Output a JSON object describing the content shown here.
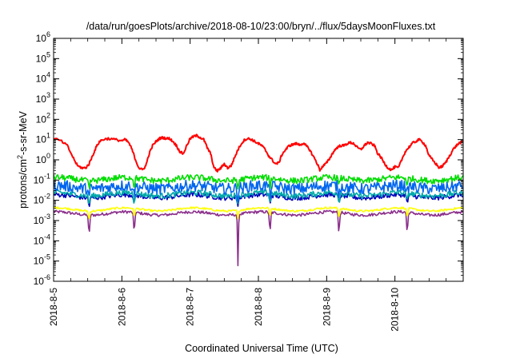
{
  "chart_data": {
    "type": "line",
    "title": "/data/run/goesPlots/archive/2018-08-10/23:00/bryn/../flux/5daysMoonFluxes.txt",
    "xlabel": "Coordinated Universal Time (UTC)",
    "ylabel": {
      "prefix": "protons/cm",
      "superscript": "2",
      "suffix": "-s-sr-MeV"
    },
    "x_range_days": [
      0,
      6.0
    ],
    "x_ticks": [
      {
        "day": 0,
        "label": "2018-8-5"
      },
      {
        "day": 1,
        "label": "2018-8-6"
      },
      {
        "day": 2,
        "label": "2018-8-7"
      },
      {
        "day": 3,
        "label": "2018-8-8"
      },
      {
        "day": 4,
        "label": "2018-8-9"
      },
      {
        "day": 5,
        "label": "2018-8-10"
      }
    ],
    "y_scale": "log",
    "y_range_exp": [
      -6,
      6
    ],
    "y_ticks": [
      {
        "exp": -6,
        "base": "10",
        "power": "-6"
      },
      {
        "exp": -5,
        "base": "10",
        "power": "-5"
      },
      {
        "exp": -4,
        "base": "10",
        "power": "-4"
      },
      {
        "exp": -3,
        "base": "10",
        "power": "-3"
      },
      {
        "exp": -2,
        "base": "10",
        "power": "-2"
      },
      {
        "exp": -1,
        "base": "10",
        "power": "-1"
      },
      {
        "exp": 0,
        "base": "10",
        "power": "0"
      },
      {
        "exp": 1,
        "base": "10",
        "power": "1"
      },
      {
        "exp": 2,
        "base": "10",
        "power": "2"
      },
      {
        "exp": 3,
        "base": "10",
        "power": "3"
      },
      {
        "exp": 4,
        "base": "10",
        "power": "4"
      },
      {
        "exp": 5,
        "base": "10",
        "power": "5"
      },
      {
        "exp": 6,
        "base": "10",
        "power": "6"
      }
    ],
    "grid": false,
    "legend": "none",
    "series": [
      {
        "color": "#ff0000",
        "x": [
          0.0,
          0.1,
          0.2,
          0.28,
          0.35,
          0.42,
          0.47,
          0.52,
          0.57,
          0.62,
          0.67,
          0.72,
          0.8,
          0.9,
          1.0,
          1.05,
          1.1,
          1.15,
          1.2,
          1.25,
          1.3,
          1.35,
          1.4,
          1.45,
          1.5,
          1.55,
          1.6,
          1.65,
          1.7,
          1.75,
          1.8,
          1.85,
          1.9,
          1.95,
          2.0,
          2.05,
          2.1,
          2.15,
          2.2,
          2.25,
          2.3,
          2.35,
          2.4,
          2.45,
          2.5,
          2.55,
          2.6,
          2.65,
          2.7,
          2.75,
          2.8,
          2.85,
          2.9,
          2.95,
          3.0,
          3.05,
          3.1,
          3.15,
          3.2,
          3.25,
          3.3,
          3.35,
          3.4,
          3.45,
          3.5,
          3.55,
          3.6,
          3.65,
          3.7,
          3.75,
          3.8,
          3.85,
          3.9,
          3.95,
          4.0,
          4.05,
          4.1,
          4.15,
          4.2,
          4.25,
          4.3,
          4.35,
          4.4,
          4.45,
          4.5,
          4.55,
          4.6,
          4.65,
          4.7,
          4.75,
          4.8,
          4.85,
          4.9,
          4.95,
          5.0,
          5.05,
          5.1,
          5.15,
          5.2,
          5.25,
          5.3,
          5.35,
          5.4,
          5.45,
          5.5,
          5.55,
          5.6,
          5.65,
          5.7,
          5.75,
          5.8,
          5.85,
          5.9,
          5.95,
          6.0
        ],
        "y_exp": [
          1.05,
          0.95,
          0.7,
          0.15,
          -0.3,
          -0.4,
          -0.4,
          -0.2,
          0.2,
          0.6,
          0.9,
          1.0,
          1.05,
          1.0,
          0.95,
          1.0,
          0.85,
          0.5,
          0.0,
          -0.4,
          -0.5,
          -0.3,
          0.3,
          0.7,
          0.9,
          1.05,
          1.1,
          1.05,
          1.05,
          0.9,
          0.7,
          0.4,
          0.3,
          0.7,
          1.05,
          1.15,
          1.2,
          1.1,
          1.0,
          0.6,
          0.3,
          -0.4,
          -0.55,
          -0.4,
          -0.2,
          -0.4,
          -0.3,
          0.1,
          0.5,
          0.8,
          1.0,
          1.05,
          1.0,
          0.9,
          0.8,
          0.7,
          0.5,
          0.2,
          0.0,
          -0.2,
          -0.15,
          0.3,
          0.5,
          0.7,
          0.75,
          0.8,
          0.75,
          0.8,
          0.7,
          0.5,
          0.2,
          -0.1,
          -0.5,
          -0.3,
          -0.15,
          0.1,
          0.4,
          0.6,
          0.7,
          0.7,
          0.8,
          0.85,
          0.8,
          0.6,
          0.5,
          0.7,
          0.85,
          0.8,
          0.7,
          0.3,
          0.1,
          -0.2,
          -0.4,
          -0.5,
          -0.35,
          -0.4,
          0.0,
          0.4,
          0.6,
          0.8,
          0.9,
          1.0,
          0.9,
          0.7,
          0.2,
          0.0,
          -0.2,
          -0.4,
          -0.3,
          -0.1,
          0.2,
          0.5,
          0.7,
          0.85,
          0.9
        ]
      },
      {
        "color": "#00dd00",
        "base_exp": -0.95,
        "amplitude": 0.15
      },
      {
        "color": "#0066ee",
        "base_exp": -1.35,
        "amplitude": 0.28
      },
      {
        "color": "#00aaaa",
        "base_exp": -1.7,
        "amplitude": 0.14
      },
      {
        "color": "#0000bb",
        "base_exp": -1.8,
        "amplitude": 0.12
      },
      {
        "color": "#ffff00",
        "base_exp": -2.45,
        "amplitude": 0.05
      },
      {
        "color": "#8b2f8b",
        "base_exp": -2.65,
        "amplitude": 0.07
      }
    ]
  }
}
